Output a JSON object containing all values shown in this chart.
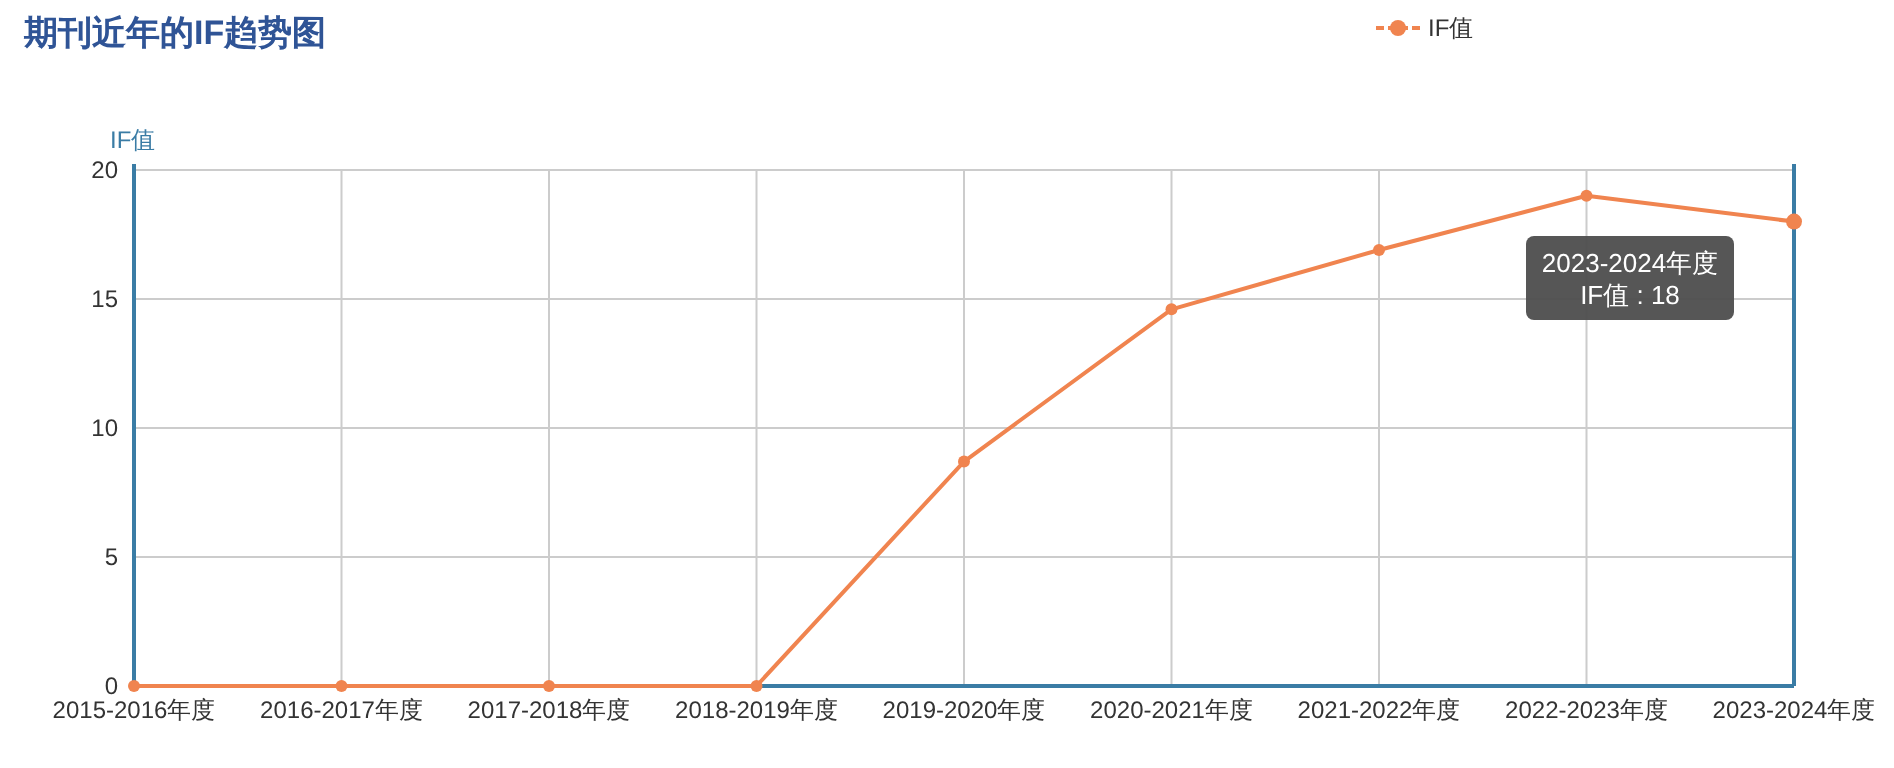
{
  "chart_data": {
    "type": "line",
    "title": "期刊近年的IF趋势图",
    "ylabel": "IF值",
    "categories": [
      "2015-2016年度",
      "2016-2017年度",
      "2017-2018年度",
      "2018-2019年度",
      "2019-2020年度",
      "2020-2021年度",
      "2021-2022年度",
      "2022-2023年度",
      "2023-2024年度"
    ],
    "series": [
      {
        "name": "IF值",
        "color": "#f0844f",
        "values": [
          0,
          0,
          0,
          0,
          8.7,
          14.6,
          16.9,
          19,
          18
        ]
      }
    ],
    "ylim": [
      0,
      20
    ],
    "yticks": [
      0,
      5,
      10,
      15,
      20
    ],
    "grid": true,
    "legend": "top",
    "marker": "circle",
    "line_style": "solid",
    "annotations": [
      "2023-2024年度\nIF值 : 18"
    ]
  }
}
